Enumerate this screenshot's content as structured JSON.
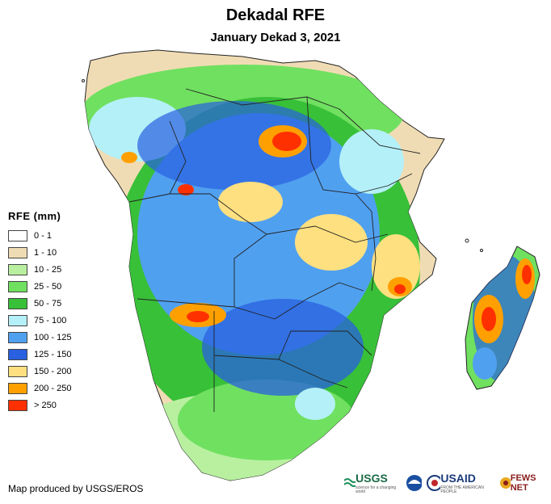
{
  "title": "Dekadal RFE",
  "subtitle": "January Dekad 3, 2021",
  "legend": {
    "title": "RFE (mm)",
    "items": [
      {
        "label": "0 - 1",
        "color": "#ffffff"
      },
      {
        "label": "1 - 10",
        "color": "#f0dcb4"
      },
      {
        "label": "10 - 25",
        "color": "#b8f0a0"
      },
      {
        "label": "25 - 50",
        "color": "#70e060"
      },
      {
        "label": "50 - 75",
        "color": "#38c038"
      },
      {
        "label": "75 - 100",
        "color": "#b4f0f8"
      },
      {
        "label": "100 - 125",
        "color": "#50a0f0"
      },
      {
        "label": "125 - 150",
        "color": "#2860e0"
      },
      {
        "label": "150 - 200",
        "color": "#ffe080"
      },
      {
        "label": "200 - 250",
        "color": "#ffa000"
      },
      {
        "label": "> 250",
        "color": "#ff3000"
      }
    ]
  },
  "credit": "Map produced by USGS/EROS",
  "logos": {
    "usgs": "USGS",
    "usgs_tagline": "science for a changing world",
    "usaid": "USAID",
    "usaid_tagline": "FROM THE AMERICAN PEOPLE",
    "fewsnet": "FEWS NET"
  }
}
